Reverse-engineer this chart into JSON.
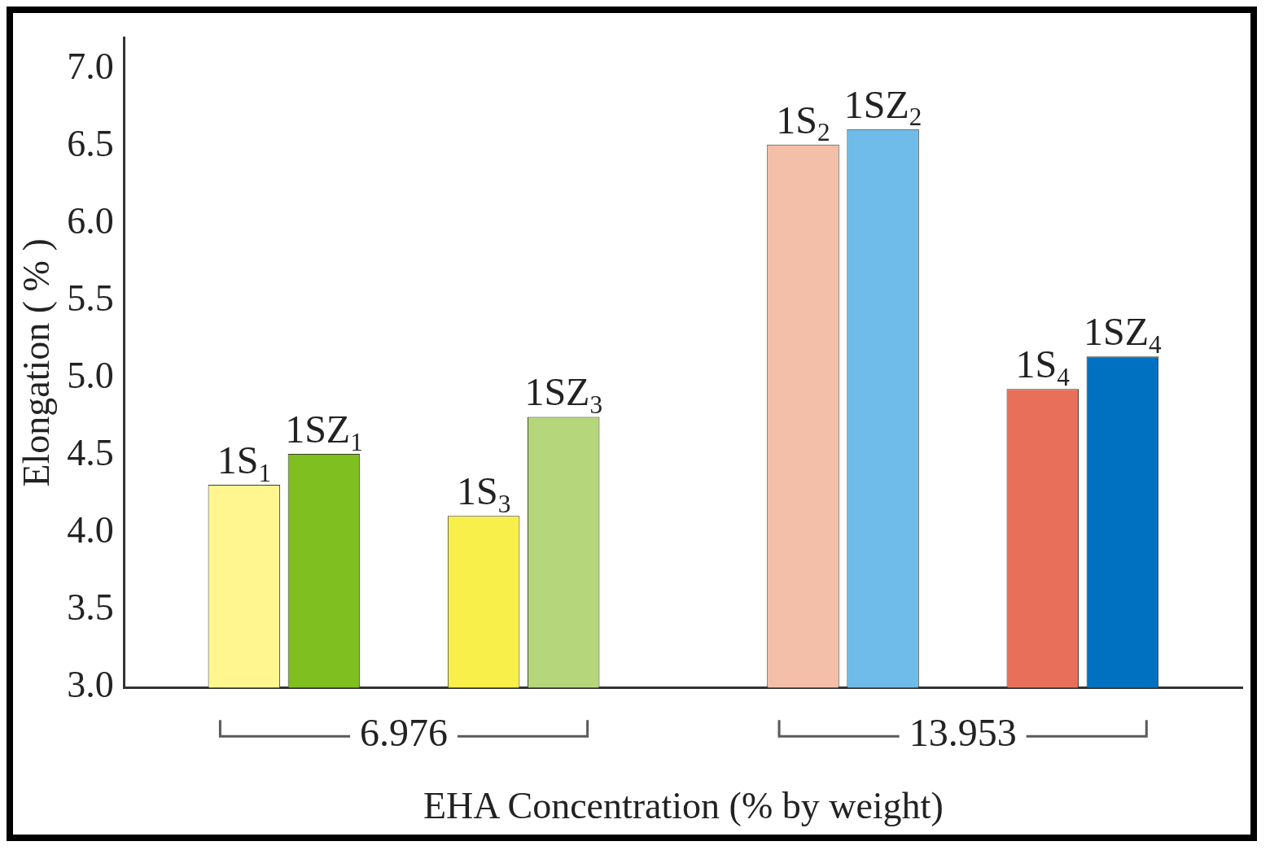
{
  "chart_data": {
    "type": "bar",
    "xlabel": "EHA Concentration (% by weight)",
    "ylabel": "Elongation ( % )",
    "categories": [
      null,
      null,
      null,
      "6.976",
      null,
      null,
      null,
      null,
      null,
      null,
      "13.953",
      null,
      null,
      null
    ],
    "series": [
      {
        "name": "1S$_{1}$",
        "color": "#fff68f",
        "values": [
          null,
          4.31,
          null,
          null,
          null,
          null,
          null,
          null,
          null,
          null,
          null,
          null,
          null,
          null
        ]
      },
      {
        "name": "1SZ$_{1}$",
        "color": "#7fbf1f",
        "values": [
          null,
          null,
          4.51,
          null,
          null,
          null,
          null,
          null,
          null,
          null,
          null,
          null,
          null,
          null
        ]
      },
      {
        "name": "1S$_{3}$",
        "color": "#f9ef4a",
        "values": [
          null,
          null,
          null,
          null,
          4.11,
          null,
          null,
          null,
          null,
          null,
          null,
          null,
          null,
          null
        ]
      },
      {
        "name": "1SZ$_{3}$",
        "color": "#b5d67a",
        "values": [
          null,
          null,
          null,
          null,
          null,
          4.75,
          null,
          null,
          null,
          null,
          null,
          null,
          null,
          null
        ]
      },
      {
        "name": "1S$_{2}$",
        "color": "#f4bfa8",
        "values": [
          null,
          null,
          null,
          null,
          null,
          null,
          null,
          null,
          6.51,
          null,
          null,
          null,
          null,
          null
        ]
      },
      {
        "name": "1SZ$_{2}$",
        "color": "#6fbbe9",
        "values": [
          null,
          null,
          null,
          null,
          null,
          null,
          null,
          null,
          null,
          6.61,
          null,
          null,
          null,
          null
        ]
      },
      {
        "name": "1S$_{4}$",
        "color": "#e8705a",
        "values": [
          null,
          null,
          null,
          null,
          null,
          null,
          null,
          null,
          null,
          null,
          null,
          4.93,
          null,
          null
        ]
      },
      {
        "name": "1SZ$_{4}$",
        "color": "#0070c0",
        "values": [
          null,
          null,
          null,
          null,
          null,
          null,
          null,
          null,
          null,
          null,
          null,
          null,
          5.14,
          null
        ]
      }
    ],
    "ylim": [
      3,
      7.2
    ],
    "yticks": [
      {
        "value": 3,
        "label": "3.0"
      },
      {
        "value": 3.5,
        "label": "3.5"
      },
      {
        "value": 4,
        "label": "4.0"
      },
      {
        "value": 4.5,
        "label": "4.5"
      },
      {
        "value": 5,
        "label": "5.0"
      },
      {
        "value": 5.5,
        "label": "5.5"
      },
      {
        "value": 6,
        "label": "6.0"
      },
      {
        "value": 6.5,
        "label": "6.5"
      },
      {
        "value": 7,
        "label": "7.0"
      }
    ],
    "grid": false,
    "legend": false
  }
}
